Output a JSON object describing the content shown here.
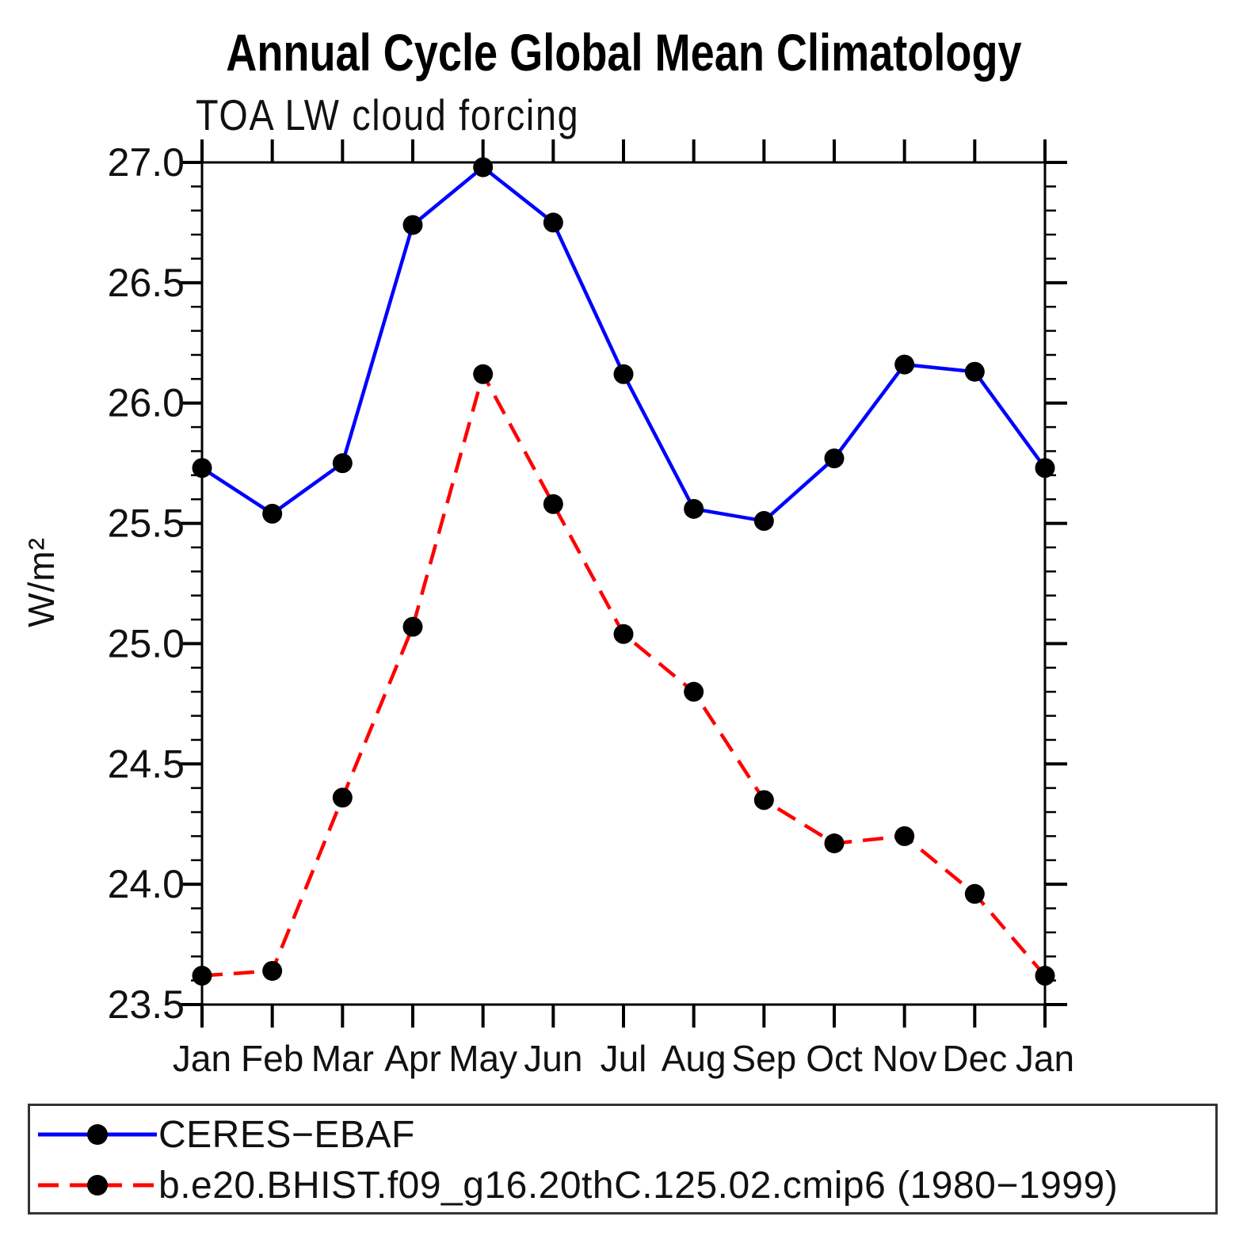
{
  "chart_data": {
    "type": "line",
    "title": "Annual Cycle Global Mean Climatology",
    "subtitle": "TOA LW cloud forcing",
    "ylabel": "W/m²",
    "xlabel": "",
    "x_tick_labels": [
      "Jan",
      "Feb",
      "Mar",
      "Apr",
      "May",
      "Jun",
      "Jul",
      "Aug",
      "Sep",
      "Oct",
      "Nov",
      "Dec",
      "Jan"
    ],
    "y_tick_labels": [
      "27.0",
      "26.5",
      "26.0",
      "25.5",
      "25.0",
      "24.5",
      "24.0",
      "23.5"
    ],
    "ylim": [
      23.5,
      27.0
    ],
    "y_major_step": 0.5,
    "y_minor_step": 0.1,
    "grid": false,
    "legend_position": "bottom-box",
    "axis_color": "#000000",
    "series": [
      {
        "name": "CERES−EBAF",
        "color": "#0000ff",
        "line_style": "solid",
        "marker": "circle",
        "marker_color": "#000000",
        "values": [
          25.73,
          25.54,
          25.75,
          26.74,
          26.98,
          26.75,
          26.12,
          25.56,
          25.51,
          25.77,
          26.16,
          26.13,
          25.73
        ]
      },
      {
        "name": "b.e20.BHIST.f09_g16.20thC.125.02.cmip6 (1980−1999)",
        "color": "#ff0000",
        "line_style": "dashed",
        "marker": "circle",
        "marker_color": "#000000",
        "values": [
          23.62,
          23.64,
          24.36,
          25.07,
          26.12,
          25.58,
          25.04,
          24.8,
          24.35,
          24.17,
          24.2,
          23.96,
          23.62
        ]
      }
    ]
  }
}
